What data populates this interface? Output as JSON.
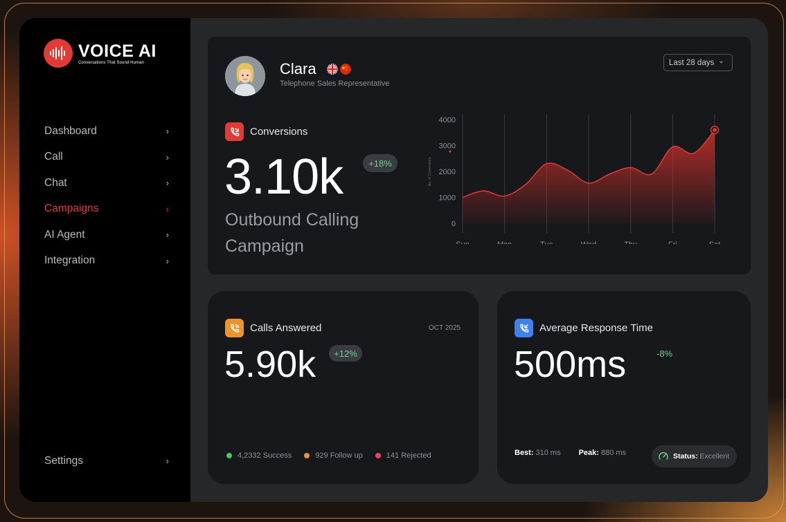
{
  "brand": {
    "name": "VOICE AI",
    "tagline": "Conversations That Sound Human",
    "badge_color": "#e23a35"
  },
  "sidebar": {
    "items": [
      {
        "label": "Dashboard",
        "active": false
      },
      {
        "label": "Call",
        "active": false
      },
      {
        "label": "Chat",
        "active": false
      },
      {
        "label": "Campaigns",
        "active": true
      },
      {
        "label": "AI Agent",
        "active": false
      },
      {
        "label": "Integration",
        "active": false
      }
    ],
    "settings_label": "Settings",
    "chevron": "›"
  },
  "agent": {
    "name": "Clara",
    "role": "Telephone Sales Representative",
    "flags": [
      "uk-flag-icon",
      "china-flag-icon"
    ]
  },
  "date_range": {
    "selected": "Last 28 days",
    "chevron": "⌄"
  },
  "conversions": {
    "label": "Conversions",
    "value": "3.10k",
    "change": "+18%",
    "campaign": "Outbound Calling Campaign",
    "icon": "phone-outgoing-icon",
    "icon_color": "#e23a35"
  },
  "calls_answered": {
    "label": "Calls Answered",
    "value": "5.90k",
    "change": "+12%",
    "period": "OCT 2025",
    "icon": "phone-ring-icon",
    "icon_color": "#f0932b",
    "legend": [
      {
        "label": "4,2332 Success",
        "color": "#4cc36a"
      },
      {
        "label": "929 Follow up",
        "color": "#f0932b"
      },
      {
        "label": "141 Rejected",
        "color": "#e8416a"
      }
    ]
  },
  "response_time": {
    "label": "Average Response Time",
    "value": "500ms",
    "change": "-8%",
    "icon": "phone-incoming-icon",
    "icon_color": "#3b82f6",
    "best_label": "Best:",
    "best_value": "310 ms",
    "peak_label": "Peak:",
    "peak_value": "880 ms",
    "status_label": "Status:",
    "status_value": "Excellent"
  },
  "chart_data": {
    "type": "area",
    "ylabel": "No. of Conversions",
    "ylim": [
      0,
      4000
    ],
    "yticks": [
      4000,
      3000,
      2000,
      1000,
      0
    ],
    "categories": [
      "Sun",
      "Mon",
      "Tue",
      "Wed",
      "Thu",
      "Fri",
      "Sat"
    ],
    "x": [
      0,
      0.5,
      1,
      1.5,
      2,
      2.5,
      3,
      3.5,
      4,
      4.5,
      5,
      5.5,
      6
    ],
    "series": [
      {
        "values": [
          1000,
          1250,
          1050,
          1500,
          2300,
          2050,
          1550,
          1900,
          2150,
          1900,
          2950,
          2700,
          3600
        ],
        "color": "#e23a35"
      }
    ],
    "grid": "vertical",
    "accent_color": "#e23a35"
  }
}
